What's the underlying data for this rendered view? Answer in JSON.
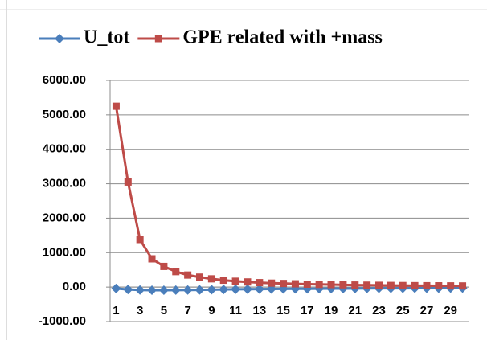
{
  "chart_data": {
    "type": "line",
    "categories": [
      1,
      null,
      3,
      null,
      5,
      null,
      7,
      null,
      9,
      null,
      11,
      null,
      13,
      null,
      15,
      null,
      17,
      null,
      19,
      null,
      21,
      null,
      23,
      null,
      25,
      null,
      27,
      null,
      29,
      null
    ],
    "series": [
      {
        "name": "U_tot",
        "color": "#4a7ebb",
        "marker": "diamond",
        "values": [
          -40,
          -70,
          -85,
          -90,
          -90,
          -88,
          -85,
          -80,
          -75,
          -70,
          -65,
          -60,
          -58,
          -55,
          -52,
          -50,
          -48,
          -46,
          -44,
          -42,
          -40,
          -38,
          -36,
          -35,
          -34,
          -33,
          -32,
          -31,
          -30,
          -30
        ]
      },
      {
        "name": "GPE related with +mass",
        "color": "#be4b48",
        "marker": "square",
        "values": [
          5250,
          3050,
          1380,
          820,
          600,
          450,
          350,
          290,
          240,
          200,
          170,
          150,
          130,
          115,
          105,
          95,
          85,
          78,
          72,
          66,
          60,
          56,
          52,
          48,
          45,
          42,
          40,
          38,
          36,
          34
        ]
      }
    ],
    "ylim": [
      -1000,
      6000
    ],
    "yticks": [
      {
        "value": -1000,
        "label": "-1000.00"
      },
      {
        "value": 0,
        "label": "0.00"
      },
      {
        "value": 1000,
        "label": "1000.00"
      },
      {
        "value": 2000,
        "label": "2000.00"
      },
      {
        "value": 3000,
        "label": "3000.00"
      },
      {
        "value": 4000,
        "label": "4000.00"
      },
      {
        "value": 5000,
        "label": "5000.00"
      },
      {
        "value": 6000,
        "label": "6000.00"
      }
    ],
    "grid": true,
    "legend": "top"
  }
}
